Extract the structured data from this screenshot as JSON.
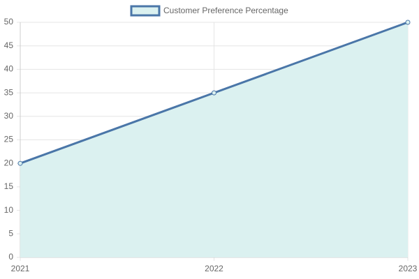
{
  "chart_data": {
    "type": "line",
    "categories": [
      "2021",
      "2022",
      "2023"
    ],
    "series": [
      {
        "name": "Customer Preference Percentage",
        "color": "#4a76a8",
        "fill_color": "#dbf1f0",
        "values": [
          20,
          35,
          50
        ]
      }
    ],
    "fill": true,
    "ylim": [
      0,
      50
    ],
    "yticks": [
      0,
      5,
      10,
      15,
      20,
      25,
      30,
      35,
      40,
      45,
      50
    ],
    "grid": true,
    "legend": "top"
  }
}
